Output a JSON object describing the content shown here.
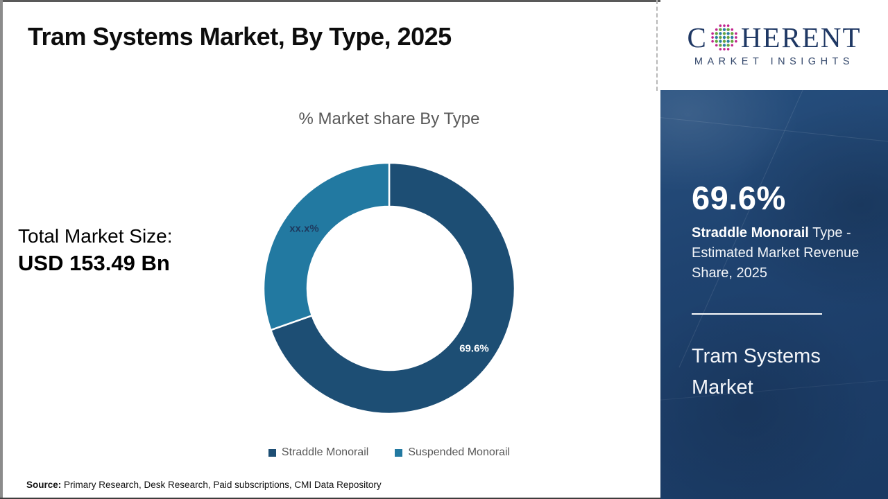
{
  "header": {
    "title": "Tram Systems Market, By Type, 2025"
  },
  "logo": {
    "brand_first_letter": "C",
    "brand_rest": "HERENT",
    "tagline": "MARKET INSIGHTS",
    "wordmark_color": "#1F3864",
    "globe_colors": {
      "teal": "#2B7FA3",
      "green": "#66A53F",
      "magenta": "#C2258F"
    }
  },
  "left_stat": {
    "label": "Total Market Size:",
    "value": "USD 153.49 Bn"
  },
  "chart_data": {
    "type": "pie",
    "donut": true,
    "title": "% Market share By Type",
    "start_angle_deg": 0,
    "direction": "clockwise",
    "legend_position": "bottom",
    "series": [
      {
        "name": "Straddle Monorail",
        "value": 69.6,
        "label": "69.6%",
        "color": "#1D4E74",
        "label_color": "#FFFFFF"
      },
      {
        "name": "Suspended Monorail",
        "value": 30.4,
        "label": "xx.x%",
        "color": "#2279A1",
        "label_color": "#1E3A5F"
      }
    ]
  },
  "sidebar": {
    "background_color": "#1E406D",
    "stat_value": "69.6%",
    "stat_bold": "Straddle Monorail",
    "stat_rest": " Type - Estimated Market Revenue Share, 2025",
    "market_name": "Tram Systems Market"
  },
  "footer": {
    "source_label": "Source:",
    "source_text": " Primary Research, Desk Research, Paid subscriptions, CMI Data Repository"
  }
}
